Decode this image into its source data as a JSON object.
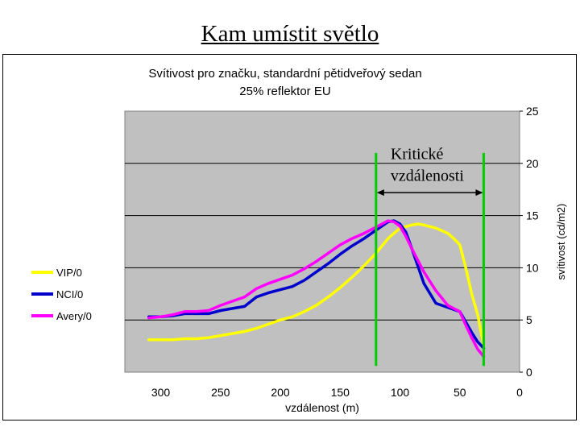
{
  "slide_title": "Kam umístit světlo",
  "chart_data": {
    "type": "line",
    "title": "Svítivost pro značku, standardní pětidveřový sedan",
    "subtitle": "25% reflektor EU",
    "xlabel": "vzdálenost (m)",
    "ylabel": "svítivost (cd/m2)",
    "x_reversed": true,
    "xlim": [
      0,
      330
    ],
    "ylim": [
      0,
      25
    ],
    "x_ticks": [
      300,
      250,
      200,
      150,
      100,
      50,
      0
    ],
    "y_ticks": [
      0,
      5,
      10,
      15,
      20,
      25
    ],
    "grid": "horizontal",
    "legend_position": "left",
    "plot_bg": "#c0c0c0",
    "series": [
      {
        "name": "VIP/0",
        "color": "#ffff00",
        "x": [
          310,
          300,
          290,
          280,
          270,
          260,
          250,
          240,
          230,
          220,
          210,
          200,
          190,
          180,
          170,
          160,
          150,
          140,
          130,
          120,
          110,
          100,
          90,
          85,
          80,
          70,
          60,
          55,
          50,
          45,
          40,
          35,
          30
        ],
        "y": [
          3.1,
          3.1,
          3.1,
          3.2,
          3.2,
          3.3,
          3.5,
          3.7,
          3.9,
          4.2,
          4.6,
          5.0,
          5.3,
          5.8,
          6.4,
          7.2,
          8.1,
          9.1,
          10.2,
          11.4,
          12.8,
          13.8,
          14.1,
          14.2,
          14.1,
          13.8,
          13.3,
          12.8,
          12.2,
          10.0,
          7.5,
          5.5,
          2.5
        ]
      },
      {
        "name": "NCI/0",
        "color": "#0000cc",
        "x": [
          310,
          300,
          290,
          280,
          270,
          260,
          250,
          240,
          230,
          220,
          210,
          200,
          190,
          180,
          170,
          160,
          150,
          140,
          130,
          120,
          115,
          110,
          105,
          100,
          95,
          90,
          80,
          70,
          60,
          50,
          45,
          40,
          35,
          30
        ],
        "y": [
          5.3,
          5.3,
          5.4,
          5.6,
          5.6,
          5.6,
          5.9,
          6.1,
          6.3,
          7.2,
          7.6,
          7.9,
          8.2,
          8.8,
          9.6,
          10.4,
          11.3,
          12.1,
          12.8,
          13.6,
          14.0,
          14.4,
          14.5,
          14.2,
          13.4,
          11.8,
          8.5,
          6.6,
          6.2,
          5.8,
          4.8,
          3.8,
          2.9,
          2.3
        ]
      },
      {
        "name": "Avery/0",
        "color": "#ff00ff",
        "x": [
          310,
          300,
          290,
          280,
          270,
          260,
          250,
          240,
          230,
          220,
          210,
          200,
          190,
          180,
          170,
          160,
          150,
          140,
          130,
          120,
          115,
          110,
          105,
          100,
          95,
          90,
          80,
          70,
          60,
          50,
          45,
          40,
          35,
          30
        ],
        "y": [
          5.2,
          5.3,
          5.5,
          5.8,
          5.8,
          5.9,
          6.4,
          6.8,
          7.2,
          8.0,
          8.5,
          8.9,
          9.3,
          9.9,
          10.6,
          11.4,
          12.2,
          12.8,
          13.3,
          13.9,
          14.2,
          14.5,
          14.4,
          14.0,
          13.0,
          11.8,
          9.6,
          7.8,
          6.4,
          5.8,
          4.5,
          3.3,
          2.2,
          1.5
        ]
      }
    ],
    "annotation": {
      "text_lines": [
        "Kritické",
        "vzdálenosti"
      ],
      "from_x": 120,
      "to_x": 30,
      "line_color": "#00cc00"
    }
  }
}
